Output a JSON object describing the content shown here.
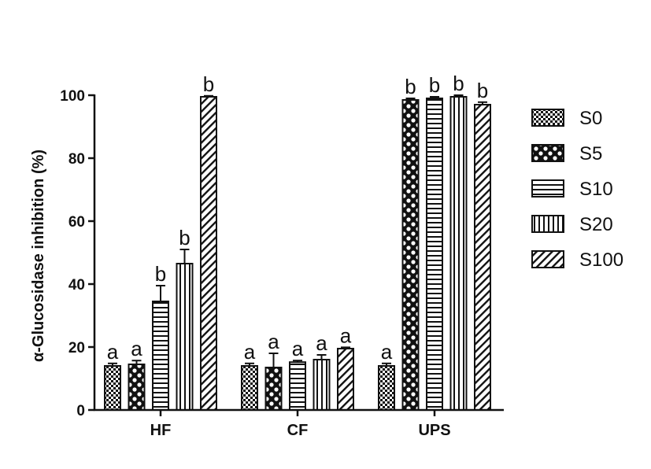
{
  "chart_data": {
    "type": "bar",
    "ylabel": "α-Glucosidase inhibition (%)",
    "ylim": [
      0,
      100
    ],
    "yticks": [
      0,
      20,
      40,
      60,
      80,
      100
    ],
    "categories": [
      "HF",
      "CF",
      "UPS"
    ],
    "series": [
      {
        "name": "S0",
        "pattern": "checker-fine",
        "values": [
          14,
          14,
          14
        ],
        "errors": [
          0.8,
          0.8,
          0.8
        ],
        "labels": [
          "a",
          "a",
          "a"
        ]
      },
      {
        "name": "S5",
        "pattern": "checker-large",
        "values": [
          14.5,
          13.5,
          98.5
        ],
        "errors": [
          1.2,
          4.5,
          0.5
        ],
        "labels": [
          "a",
          "a",
          "b"
        ]
      },
      {
        "name": "S10",
        "pattern": "horizontal-lines",
        "values": [
          34.5,
          15.2,
          99
        ],
        "errors": [
          5.0,
          0.5,
          0.5
        ],
        "labels": [
          "b",
          "a",
          "b"
        ]
      },
      {
        "name": "S20",
        "pattern": "vertical-lines",
        "values": [
          46.5,
          16,
          99.5
        ],
        "errors": [
          4.5,
          1.5,
          0.5
        ],
        "labels": [
          "b",
          "a",
          "b"
        ]
      },
      {
        "name": "S100",
        "pattern": "diagonal-lines",
        "values": [
          99.5,
          19.5,
          97
        ],
        "errors": [
          0.3,
          0.4,
          0.8
        ],
        "labels": [
          "b",
          "a",
          "b"
        ]
      }
    ],
    "legend_position": "right"
  }
}
